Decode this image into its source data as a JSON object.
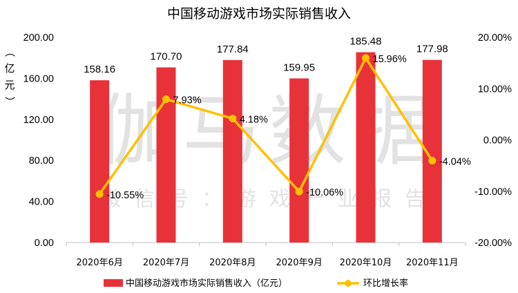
{
  "chart_data": {
    "type": "bar+line",
    "title": "中国移动游戏市场实际销售收入",
    "categories": [
      "2020年6月",
      "2020年7月",
      "2020年8月",
      "2020年9月",
      "2020年10月",
      "2020年11月"
    ],
    "series": [
      {
        "name": "中国移动游戏市场实际销售收入（亿元）",
        "type": "bar",
        "axis": "left",
        "color": "#e8323a",
        "values": [
          158.16,
          170.7,
          177.84,
          159.95,
          185.48,
          177.98
        ],
        "labels": [
          "158.16",
          "170.70",
          "177.84",
          "159.95",
          "185.48",
          "177.98"
        ]
      },
      {
        "name": "环比增长率",
        "type": "line",
        "axis": "right",
        "color": "#ffc000",
        "values": [
          -10.55,
          7.93,
          4.18,
          -10.06,
          15.96,
          -4.04
        ],
        "labels": [
          "-10.55%",
          "7.93%",
          "4.18%",
          "-10.06%",
          "15.96%",
          "-4.04%"
        ]
      }
    ],
    "ylabel": "（亿元）",
    "ylim": [
      0,
      200
    ],
    "y_ticks": [
      "0.00",
      "40.00",
      "80.00",
      "120.00",
      "160.00",
      "200.00"
    ],
    "y2lim": [
      -20,
      20
    ],
    "y2_ticks": [
      "-20.00%",
      "-10.00%",
      "0.00%",
      "10.00%",
      "20.00%"
    ],
    "grid": false,
    "legend_position": "bottom"
  },
  "watermark": {
    "main": "伽马数据",
    "sub": "微信号：游戏产业报告"
  }
}
